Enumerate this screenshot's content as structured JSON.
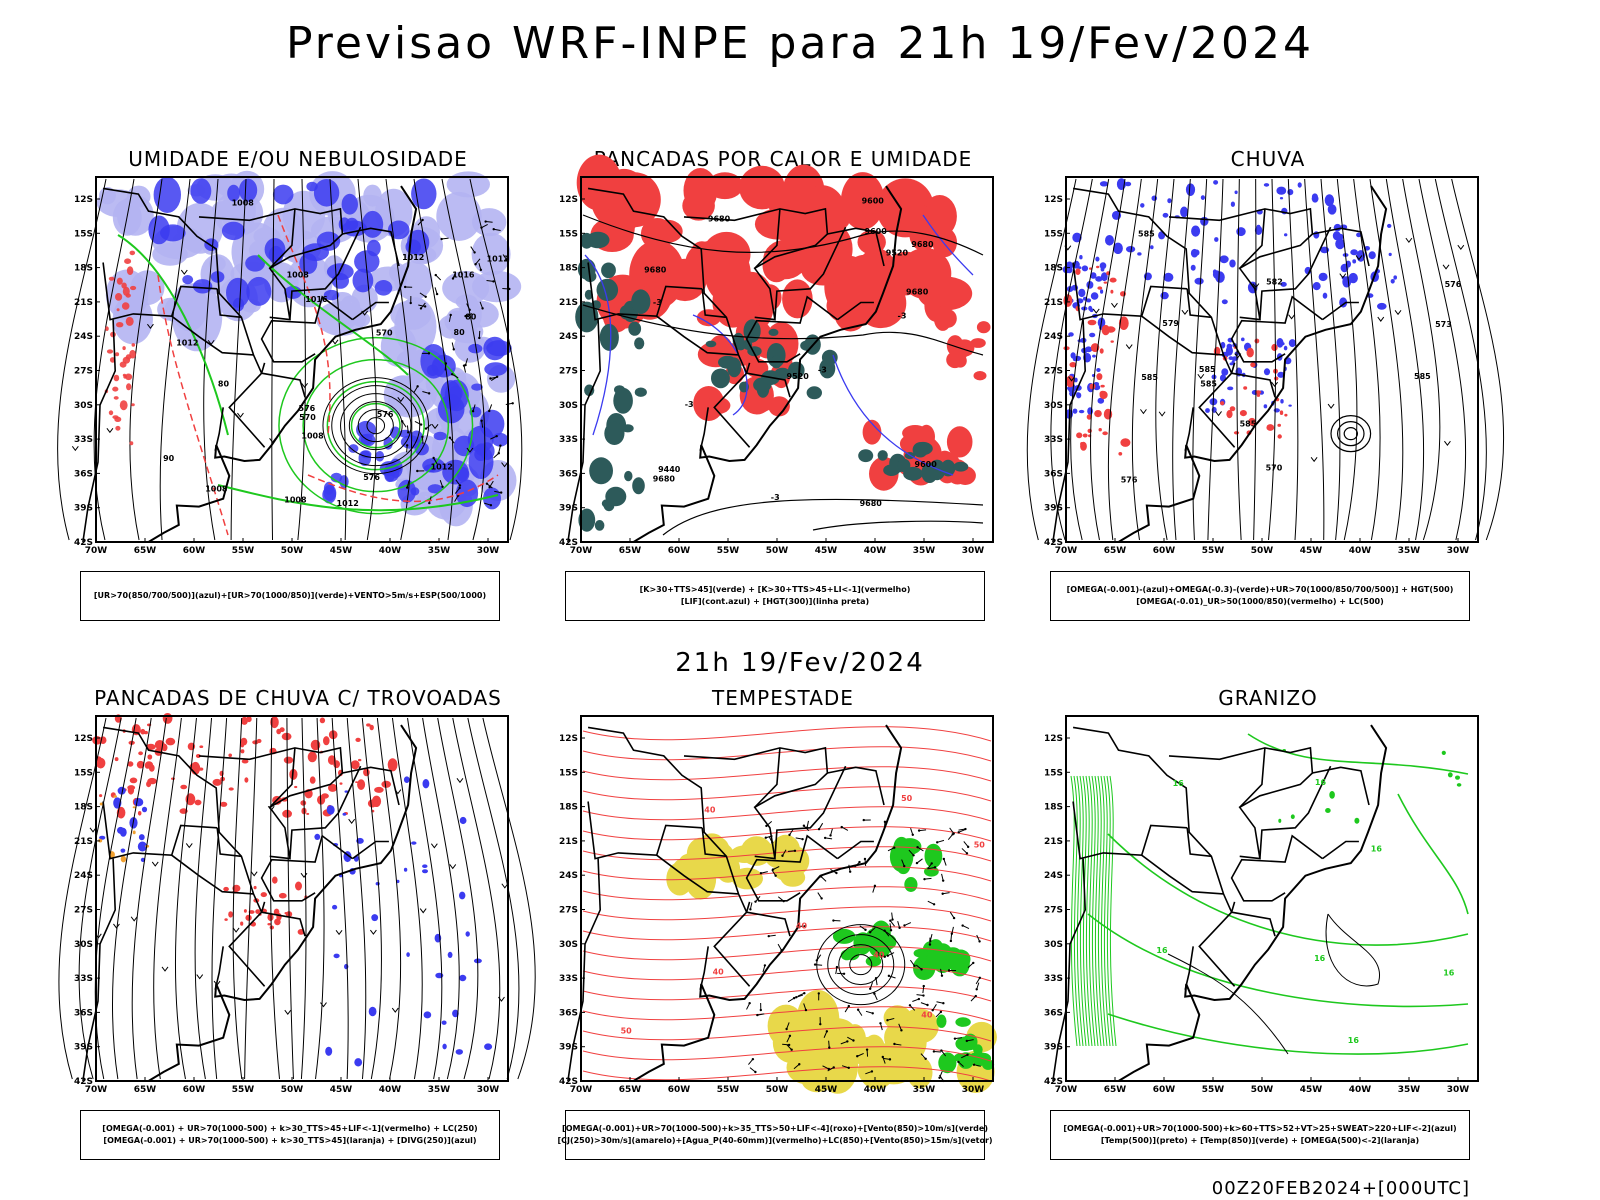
{
  "title": "Previsao WRF-INPE  para 21h 19/Fev/2024",
  "subtitle": "21h 19/Fev/2024",
  "footer": "00Z20FEB2024+[000UTC]",
  "axes": {
    "lat_labels": [
      "12S",
      "15S",
      "18S",
      "21S",
      "24S",
      "27S",
      "30S",
      "33S",
      "36S",
      "39S",
      "42S"
    ],
    "lon_labels": [
      "70W",
      "65W",
      "60W",
      "55W",
      "50W",
      "45W",
      "40W",
      "35W",
      "30W"
    ]
  },
  "colors": {
    "blue": "#3b3bf0",
    "lightblue": "#b4b4f2",
    "green": "#1ec81e",
    "darkgreen": "#2d5a5a",
    "red": "#f04040",
    "yellow": "#e8d84a",
    "orange": "#f0a030"
  },
  "panels": [
    {
      "id": "umidade",
      "title": "UMIDADE E/OU NEBULOSIDADE",
      "legend": [
        "[UR>70(850/700/500)](azul)+[UR>70(1000/850)](verde)+VENTO>5m/s+ESP(500/1000)"
      ],
      "contour_labels": [
        "1012",
        "1008",
        "1016",
        "1012",
        "1008",
        "1012",
        "1008",
        "1016",
        "1008",
        "1012",
        "1012",
        "1008",
        "576",
        "576",
        "570",
        "570",
        "576",
        "90",
        "80",
        "80",
        "80"
      ]
    },
    {
      "id": "pancadas-calor",
      "title": "PANCADAS POR CALOR E UMIDADE",
      "legend": [
        "[K>30+TTS>45](verde) + [K>30+TTS>45+LI<-1](vermelho)",
        "[LIF](cont.azul) + [HGT(300)](linha preta)"
      ],
      "contour_labels": [
        "9680",
        "9680",
        "9680",
        "9680",
        "9680",
        "9680",
        "9600",
        "9520",
        "9600",
        "9520",
        "9440",
        "9600",
        "-3",
        "-3",
        "-3",
        "-3",
        "-3"
      ]
    },
    {
      "id": "chuva",
      "title": "CHUVA",
      "legend": [
        "[OMEGA(-0.001)-(azul)+OMEGA(-0.3)-(verde)+UR>70(1000/850/700/500)] + HGT(500)",
        "[OMEGA(-0.01)_UR>50(1000/850)(vermelho) + LC(500)"
      ],
      "contour_labels": [
        "585",
        "585",
        "585",
        "582",
        "585",
        "585",
        "579",
        "576",
        "576",
        "573",
        "570",
        "585"
      ]
    },
    {
      "id": "pancadas-trovoadas",
      "title": "PANCADAS DE CHUVA C/ TROVOADAS",
      "legend": [
        "[OMEGA(-0.001) + UR>70(1000-500) + k>30_TTS>45+LIF<-1](vermelho) + LC(250)",
        "[OMEGA(-0.001) + UR>70(1000-500) + k>30_TTS>45](laranja) + [DIVG(250)](azul)"
      ],
      "contour_labels": []
    },
    {
      "id": "tempestade",
      "title": "TEMPESTADE",
      "legend": [
        "[OMEGA(-0.001)+UR>70(1000-500)+k>35_TTS>50+LIF<-4](roxo)+[Vento(850)>10m/s](verde)",
        "[CJ(250)>30m/s](amarelo)+[Agua_P(40-60mm)](vermelho)+LC(850)+[Vento(850)>15m/s](vetor)"
      ],
      "contour_labels": [
        "40",
        "50",
        "40",
        "40",
        "50",
        "40",
        "40",
        "50"
      ]
    },
    {
      "id": "granizo",
      "title": "GRANIZO",
      "legend": [
        "[OMEGA(-0.001)+UR>70(1000-500)+k>60+TTS>52+VT>25+SWEAT>220+LIF<-2](azul)",
        "[Temp(500)](preto) + [Temp(850)](verde) + [OMEGA(500)<-2](laranja)"
      ],
      "contour_labels": [
        "16",
        "16",
        "16",
        "16",
        "16",
        "16",
        "16"
      ]
    }
  ]
}
